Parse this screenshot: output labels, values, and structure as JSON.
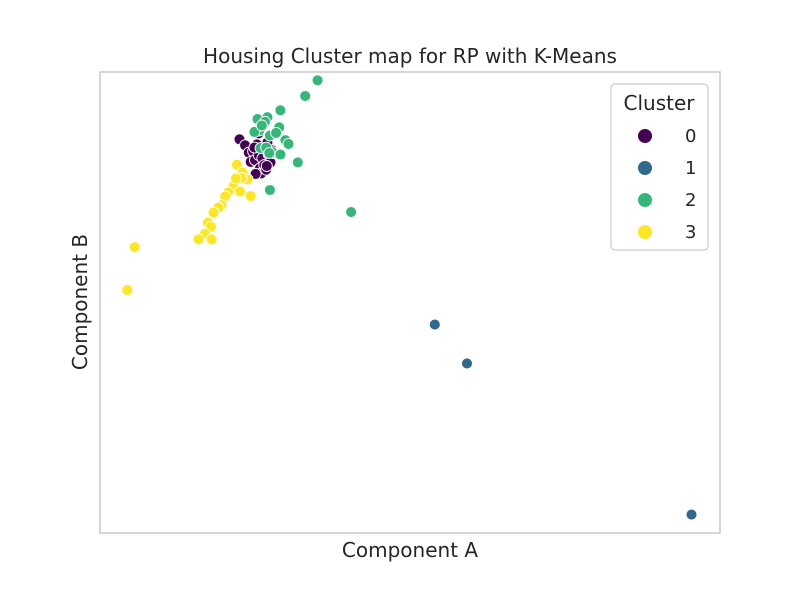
{
  "chart_data": {
    "type": "scatter",
    "title": "Housing Cluster map for RP with K-Means",
    "xlabel": "Component A",
    "ylabel": "Component B",
    "xlim": [
      0,
      100
    ],
    "ylim": [
      0,
      100
    ],
    "xticks_visible": false,
    "yticks_visible": false,
    "grid": false,
    "legend": {
      "title": "Cluster",
      "placement": "top-right"
    },
    "series": [
      {
        "name": "0",
        "color": "#440154",
        "points": [
          [
            22.5,
            85.4
          ],
          [
            23.4,
            84.1
          ],
          [
            24.0,
            82.5
          ],
          [
            24.3,
            80.5
          ],
          [
            24.7,
            82.8
          ],
          [
            25.0,
            80.9
          ],
          [
            25.3,
            84.3
          ],
          [
            25.6,
            86.7
          ],
          [
            25.6,
            82.0
          ],
          [
            25.8,
            79.1
          ],
          [
            26.0,
            78.0
          ],
          [
            26.2,
            81.3
          ],
          [
            26.5,
            79.8
          ],
          [
            26.8,
            78.8
          ],
          [
            27.0,
            84.7
          ],
          [
            27.2,
            82.2
          ],
          [
            27.5,
            80.4
          ],
          [
            27.8,
            83.0
          ],
          [
            28.0,
            82.4
          ],
          [
            25.1,
            77.9
          ],
          [
            26.9,
            79.6
          ],
          [
            24.9,
            83.6
          ]
        ]
      },
      {
        "name": "1",
        "color": "#31688e",
        "points": [
          [
            54.0,
            45.2
          ],
          [
            59.2,
            36.8
          ],
          [
            95.4,
            4.0
          ]
        ]
      },
      {
        "name": "2",
        "color": "#35b779",
        "points": [
          [
            35.1,
            98.2
          ],
          [
            33.1,
            94.8
          ],
          [
            29.1,
            91.7
          ],
          [
            27.0,
            90.2
          ],
          [
            25.4,
            89.8
          ],
          [
            26.6,
            89.2
          ],
          [
            28.9,
            88.0
          ],
          [
            25.7,
            87.3
          ],
          [
            24.9,
            87.0
          ],
          [
            29.9,
            85.2
          ],
          [
            25.9,
            83.5
          ],
          [
            27.4,
            86.2
          ],
          [
            28.4,
            86.8
          ],
          [
            26.1,
            88.4
          ],
          [
            27.8,
            82.6
          ],
          [
            31.9,
            80.4
          ],
          [
            30.4,
            84.4
          ],
          [
            26.8,
            83.6
          ],
          [
            27.3,
            82.4
          ],
          [
            29.1,
            82.1
          ],
          [
            27.4,
            74.4
          ],
          [
            40.5,
            69.6
          ]
        ]
      },
      {
        "name": "3",
        "color": "#fde725",
        "points": [
          [
            5.6,
            62.0
          ],
          [
            4.4,
            52.7
          ],
          [
            22.1,
            79.9
          ],
          [
            23.0,
            78.2
          ],
          [
            23.8,
            76.7
          ],
          [
            22.8,
            77.0
          ],
          [
            21.5,
            75.2
          ],
          [
            21.9,
            76.9
          ],
          [
            20.7,
            73.9
          ],
          [
            20.2,
            73.0
          ],
          [
            19.6,
            71.1
          ],
          [
            19.1,
            70.6
          ],
          [
            18.3,
            69.5
          ],
          [
            17.4,
            67.3
          ],
          [
            17.9,
            66.4
          ],
          [
            16.9,
            64.9
          ],
          [
            15.9,
            63.7
          ],
          [
            18.0,
            63.7
          ],
          [
            24.3,
            73.1
          ],
          [
            22.6,
            74.1
          ]
        ]
      }
    ]
  }
}
